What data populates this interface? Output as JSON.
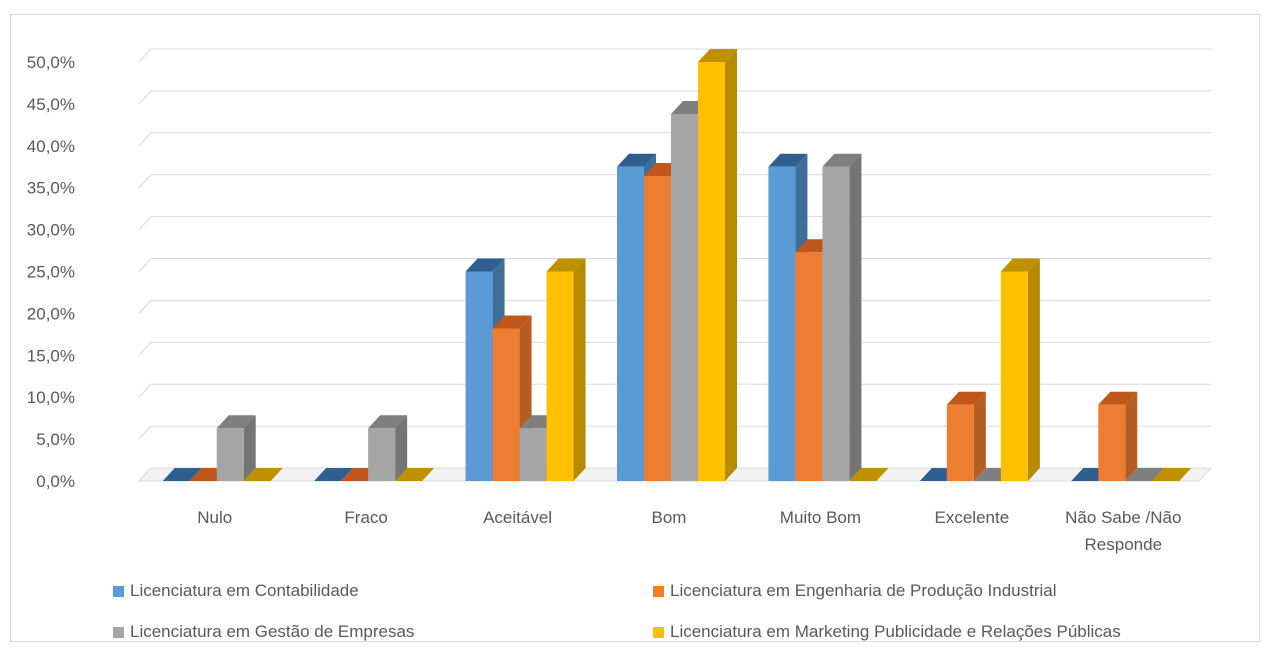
{
  "chart_data": {
    "type": "bar",
    "style": "3d-clustered-column",
    "categories": [
      "Nulo",
      "Fraco",
      "Aceitável",
      "Bom",
      "Muito Bom",
      "Excelente",
      "Não Sabe /Não Responde"
    ],
    "category_lines": [
      [
        "Nulo"
      ],
      [
        "Fraco"
      ],
      [
        "Aceitável"
      ],
      [
        "Bom"
      ],
      [
        "Muito Bom"
      ],
      [
        "Excelente"
      ],
      [
        "Não Sabe /Não",
        "Responde"
      ]
    ],
    "series": [
      {
        "name": "Licenciatura em Contabilidade",
        "color": "#5B9BD5",
        "side_color": "#3E6E9A",
        "top_color": "#2F5F8E",
        "values": [
          0,
          0,
          25.0,
          37.5,
          37.5,
          0,
          0
        ]
      },
      {
        "name": "Licenciatura em Engenharia de Produção Industrial",
        "color": "#ED7D31",
        "side_color": "#B45E22",
        "top_color": "#C0561C",
        "values": [
          0,
          0,
          18.2,
          36.4,
          27.3,
          9.1,
          9.1
        ]
      },
      {
        "name": "Licenciatura em Gestão de Empresas",
        "color": "#A5A5A5",
        "side_color": "#757575",
        "top_color": "#7F7F7F",
        "values": [
          6.3,
          6.3,
          6.3,
          43.8,
          37.5,
          0,
          0
        ]
      },
      {
        "name": "Licenciatura em Marketing Publicidade e Relações Públicas",
        "color": "#FFC000",
        "side_color": "#B88A00",
        "top_color": "#BF9000",
        "values": [
          0,
          0,
          25.0,
          50.0,
          0,
          25.0,
          0
        ]
      }
    ],
    "y_ticks": [
      "0,0%",
      "5,0%",
      "10,0%",
      "15,0%",
      "20,0%",
      "25,0%",
      "30,0%",
      "35,0%",
      "40,0%",
      "45,0%",
      "50,0%"
    ],
    "ylim": [
      0,
      50
    ],
    "grid": true,
    "legend_position": "bottom",
    "title": "",
    "xlabel": "",
    "ylabel": ""
  }
}
